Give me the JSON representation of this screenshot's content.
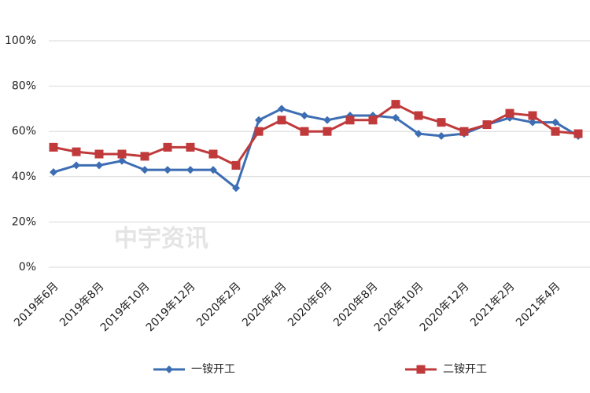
{
  "chart_data": {
    "type": "line",
    "categories": [
      "2019年6月",
      null,
      "2019年8月",
      null,
      "2019年10月",
      null,
      "2019年12月",
      null,
      "2020年2月",
      null,
      "2020年4月",
      null,
      "2020年6月",
      null,
      "2020年8月",
      null,
      "2020年10月",
      null,
      "2020年12月",
      null,
      "2021年2月",
      null,
      "2021年4月",
      null
    ],
    "series": [
      {
        "name": "一铵开工",
        "color": "#3d6eb3",
        "marker": "diamond",
        "values": [
          42,
          45,
          45,
          47,
          43,
          43,
          43,
          43,
          35,
          65,
          70,
          67,
          65,
          67,
          67,
          66,
          59,
          58,
          59,
          63,
          66,
          64,
          64,
          58
        ]
      },
      {
        "name": "二铵开工",
        "color": "#c0393b",
        "marker": "square",
        "values": [
          53,
          51,
          50,
          50,
          49,
          53,
          53,
          50,
          45,
          60,
          65,
          60,
          60,
          65,
          65,
          72,
          67,
          64,
          60,
          63,
          68,
          67,
          60,
          59
        ]
      }
    ],
    "ylim": [
      0,
      100
    ],
    "yticks": [
      {
        "value": 0,
        "label": "0%"
      },
      {
        "value": 20,
        "label": "20%"
      },
      {
        "value": 40,
        "label": "40%"
      },
      {
        "value": 60,
        "label": "60%"
      },
      {
        "value": 80,
        "label": "80%"
      },
      {
        "value": 100,
        "label": "100%"
      }
    ],
    "grid": true,
    "legend": "bottom",
    "watermark": "中宇资讯"
  }
}
